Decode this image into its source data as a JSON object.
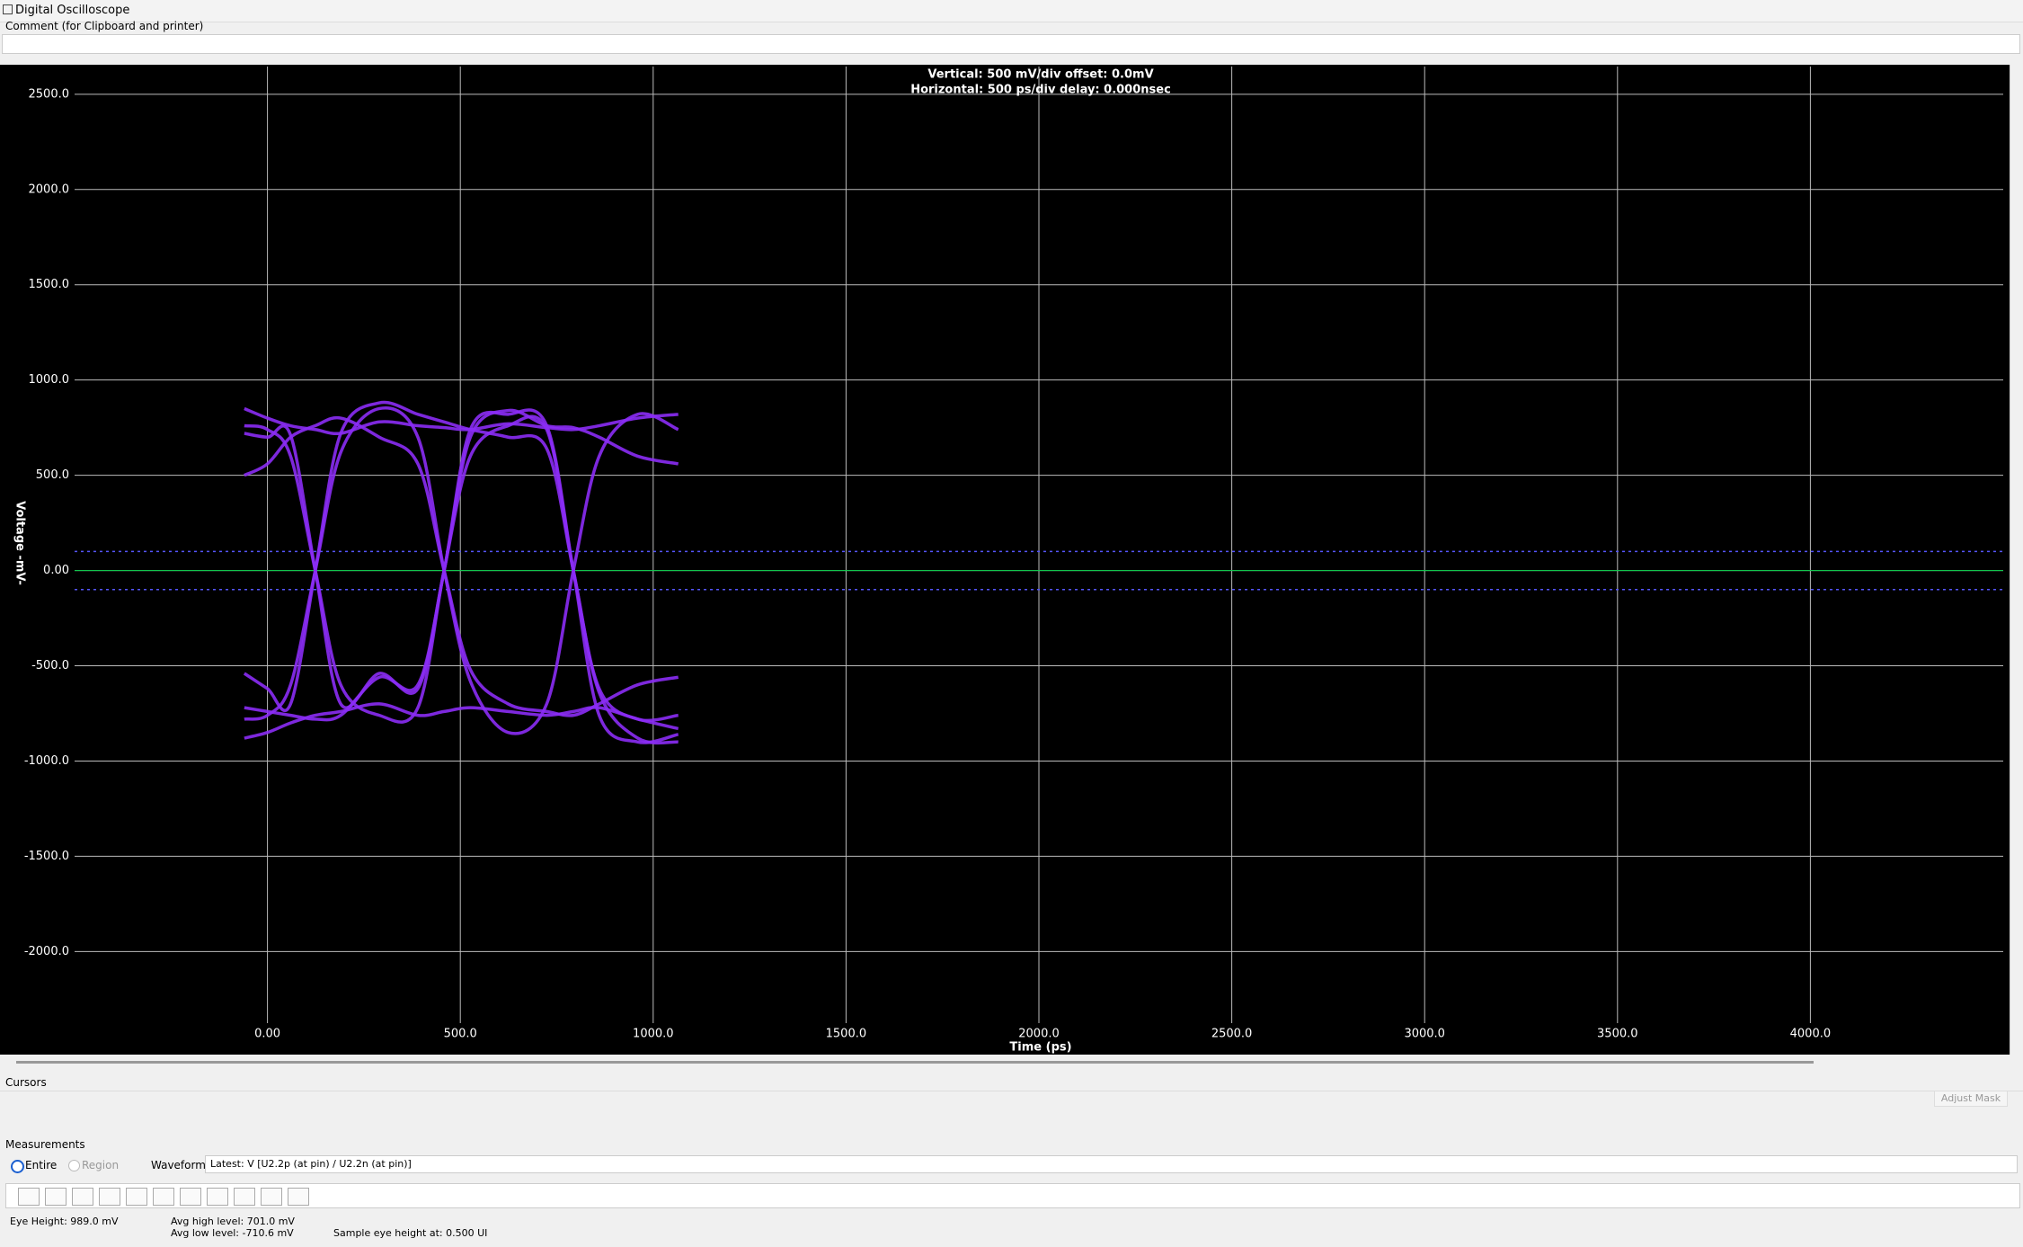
{
  "window": {
    "title": "Digital Oscilloscope",
    "comment_label": "Comment (for Clipboard and printer)"
  },
  "chart_data": {
    "type": "line",
    "header": [
      "Vertical: 500 mV/div  offset: 0.0mV",
      "Horizontal: 500 ps/div  delay: 0.000nsec"
    ],
    "xlabel": "Time  (ps)",
    "ylabel": "Voltage  -mV-",
    "xlim": [
      -500,
      4500
    ],
    "ylim": [
      -2541,
      2655
    ],
    "xticks": [
      {
        "value": 0,
        "label": "0.00"
      },
      {
        "value": 500,
        "label": "500.0"
      },
      {
        "value": 1000,
        "label": "1000.0"
      },
      {
        "value": 1500,
        "label": "1500.0"
      },
      {
        "value": 2000,
        "label": "2000.0"
      },
      {
        "value": 2500,
        "label": "2500.0"
      },
      {
        "value": 3000,
        "label": "3000.0"
      },
      {
        "value": 3500,
        "label": "3500.0"
      },
      {
        "value": 4000,
        "label": "4000.0"
      }
    ],
    "yticks": [
      {
        "value": 2500,
        "label": "2500.0"
      },
      {
        "value": 2000,
        "label": "2000.0"
      },
      {
        "value": 1500,
        "label": "1500.0"
      },
      {
        "value": 1000,
        "label": "1000.0"
      },
      {
        "value": 500,
        "label": "500.0"
      },
      {
        "value": 0,
        "label": "0.00"
      },
      {
        "value": -500,
        "label": "-500.0"
      },
      {
        "value": -1000,
        "label": "-1000.0"
      },
      {
        "value": -1500,
        "label": "-1500.0"
      },
      {
        "value": -2000,
        "label": "-2000.0"
      }
    ],
    "grid": true,
    "threshold_lines": [
      100,
      -100
    ],
    "threshold_color": "#5555ff",
    "zero_line": 0,
    "zero_color": "#00cc44",
    "x": [
      -60,
      0,
      60,
      124,
      190,
      290,
      390,
      458,
      526,
      624,
      724,
      793,
      860,
      960,
      1065
    ],
    "series": [
      {
        "color": "#8b2cf5",
        "values": [
          850,
          800,
          760,
          740,
          720,
          780,
          760,
          750,
          740,
          770,
          750,
          740,
          760,
          800,
          820
        ]
      },
      {
        "color": "#8b2cf5",
        "values": [
          760,
          740,
          600,
          0,
          -600,
          -760,
          -720,
          0,
          600,
          760,
          740,
          0,
          -620,
          -780,
          -760
        ]
      },
      {
        "color": "#8b2cf5",
        "values": [
          -780,
          -760,
          -600,
          0,
          620,
          850,
          700,
          0,
          -580,
          -850,
          -700,
          0,
          600,
          820,
          740
        ]
      },
      {
        "color": "#8b2cf5",
        "values": [
          -880,
          -850,
          -800,
          -760,
          -740,
          -700,
          -760,
          -740,
          -720,
          -740,
          -760,
          -740,
          -720,
          -780,
          -830
        ]
      },
      {
        "color": "#8b2cf5",
        "values": [
          500,
          560,
          700,
          760,
          800,
          700,
          560,
          0,
          -520,
          -700,
          -740,
          -760,
          -700,
          -600,
          -560
        ]
      },
      {
        "color": "#8b2cf5",
        "values": [
          -540,
          -620,
          -700,
          0,
          720,
          880,
          820,
          780,
          740,
          700,
          640,
          0,
          -640,
          -880,
          -900
        ]
      },
      {
        "color": "#8b2cf5",
        "values": [
          720,
          700,
          710,
          0,
          -700,
          -540,
          -620,
          0,
          700,
          840,
          760,
          750,
          700,
          600,
          560
        ]
      },
      {
        "color": "#8b2cf5",
        "values": [
          -720,
          -740,
          -760,
          -780,
          -760,
          -560,
          -600,
          0,
          740,
          820,
          760,
          0,
          -760,
          -900,
          -860
        ]
      }
    ]
  },
  "cursors": {
    "title": "Cursors",
    "button": "Adjust Mask"
  },
  "measurements": {
    "title": "Measurements",
    "options": [
      "Entire",
      "Region"
    ],
    "waveform_label": "Waveform:",
    "waveform": "Latest: V [U2.2p (at pin) / U2.2n (at pin)]",
    "results": [
      "Eye Height: 989.0 mV",
      "Avg high level: 701.0 mV",
      "Avg low level: -710.6 mV",
      "Sample eye height at: 0.500 UI"
    ]
  }
}
